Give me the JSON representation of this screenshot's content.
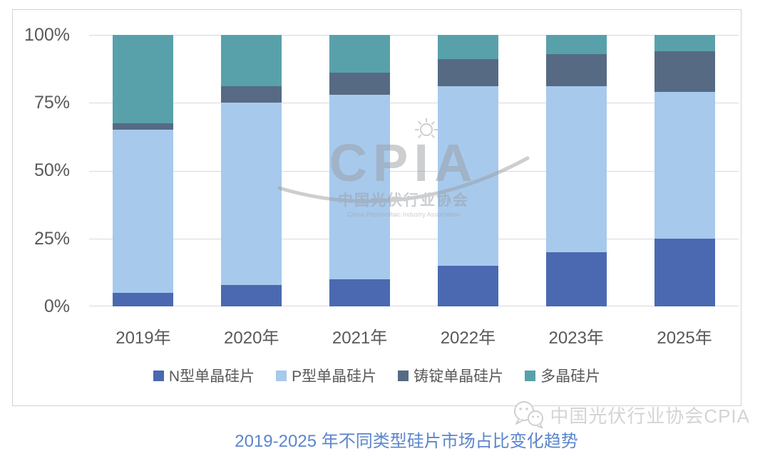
{
  "chart_data": {
    "type": "bar",
    "subtype": "stacked-100",
    "title": "2019-2025 年不同类型硅片市场占比变化趋势",
    "categories": [
      "2019年",
      "2020年",
      "2021年",
      "2022年",
      "2023年",
      "2025年"
    ],
    "series": [
      {
        "name": "N型单晶硅片",
        "color": "#4a69b0",
        "values": [
          5,
          8,
          10,
          15,
          20,
          25
        ]
      },
      {
        "name": "P型单晶硅片",
        "color": "#a7c9ec",
        "values": [
          60,
          67,
          68,
          66,
          61,
          54
        ]
      },
      {
        "name": "铸锭单晶硅片",
        "color": "#566a84",
        "values": [
          2.5,
          6,
          8,
          10,
          12,
          15
        ]
      },
      {
        "name": "多晶硅片",
        "color": "#58a1ab",
        "values": [
          32.5,
          19,
          14,
          9,
          7,
          6
        ]
      }
    ],
    "y_ticks": [
      "100%",
      "75%",
      "50%",
      "25%",
      "0%"
    ],
    "ylim": [
      0,
      100
    ],
    "grid": true,
    "legend_position": "bottom"
  },
  "watermark": {
    "logo": "CPIA",
    "org_cn": "中国光伏行业协会",
    "org_en": "China Photovoltaic Industry Association"
  },
  "footer": {
    "caption": "2019-2025 年不同类型硅片市场占比变化趋势",
    "source": "中国光伏行业协会CPIA"
  },
  "colors": {
    "axis_text": "#595959",
    "gridline": "#d9d9d9",
    "caption_text": "#5b85cc",
    "source_text": "#d4d4d4",
    "watermark_gray": "#9a9ea3"
  }
}
